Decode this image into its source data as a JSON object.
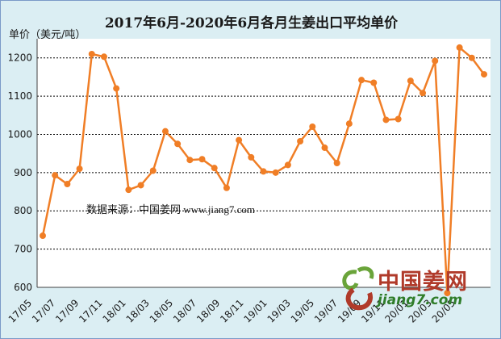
{
  "chart_data": {
    "type": "line",
    "title": "2017年6月-2020年6月各月生姜出口平均单价",
    "ylabel": "单价（美元/吨）",
    "xlabel": "",
    "ylim": [
      600,
      1250
    ],
    "yticks": [
      600,
      700,
      800,
      900,
      1000,
      1100,
      1200
    ],
    "grid": true,
    "x_tick_labels": [
      "17/05",
      "17/07",
      "17/09",
      "17/11",
      "18/01",
      "18/03",
      "18/05",
      "18/07",
      "18/09",
      "18/11",
      "19/01",
      "19/03",
      "19/05",
      "19/07",
      "19/09",
      "19/11",
      "20/01",
      "20/03",
      "20/05"
    ],
    "x": [
      "17/06",
      "17/07",
      "17/08",
      "17/09",
      "17/10",
      "17/11",
      "17/12",
      "18/01",
      "18/02",
      "18/03",
      "18/04",
      "18/05",
      "18/06",
      "18/07",
      "18/08",
      "18/09",
      "18/10",
      "18/11",
      "18/12",
      "19/01",
      "19/02",
      "19/03",
      "19/04",
      "19/05",
      "19/06",
      "19/07",
      "19/08",
      "19/09",
      "19/10",
      "19/11",
      "19/12",
      "20/01",
      "20/02",
      "20/03",
      "20/04",
      "20/05",
      "20/06"
    ],
    "series": [
      {
        "name": "",
        "color": "#f07e26",
        "values": [
          735,
          893,
          870,
          910,
          1210,
          1203,
          1120,
          855,
          867,
          905,
          1008,
          975,
          933,
          935,
          912,
          860,
          985,
          940,
          903,
          900,
          920,
          982,
          1020,
          965,
          925,
          1028,
          1142,
          1135,
          1038,
          1040,
          1140,
          1108,
          1192,
          585,
          1227,
          1200,
          1157
        ]
      }
    ],
    "source_note": "数据来源：中国姜网 www.jiang7.com"
  },
  "watermark": {
    "name": "中国姜网",
    "url": "jiang7.com"
  },
  "colors": {
    "line": "#f07e26",
    "plot_bg": "#ffffff",
    "page_bg": "#dbeef3"
  }
}
